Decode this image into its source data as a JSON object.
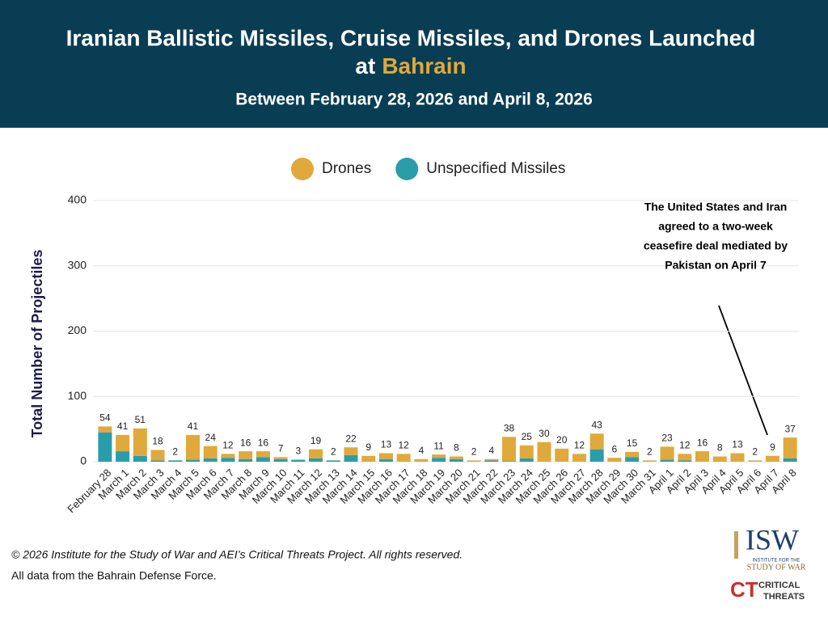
{
  "header": {
    "title_line1": "Iranian Ballistic Missiles, Cruise Missiles, and Drones Launched",
    "title_line2_prefix": "at",
    "title_highlight": "Bahrain",
    "subtitle": "Between February 28, 2026 and April 8, 2026"
  },
  "chart_data": {
    "type": "stacked_bar",
    "y_label": "Total Number of Projectiles",
    "categories": [
      "February 28",
      "March 1",
      "March 2",
      "March 3",
      "March 4",
      "March 5",
      "March 6",
      "March 7",
      "March 8",
      "March 9",
      "March 10",
      "March 11",
      "March 12",
      "March 13",
      "March 14",
      "March 15",
      "March 16",
      "March 17",
      "March 18",
      "March 19",
      "March 20",
      "March 21",
      "March 22",
      "March 23",
      "March 24",
      "March 25",
      "March 26",
      "March 27",
      "March 28",
      "March 29",
      "March 30",
      "March 31",
      "April 1",
      "April 2",
      "April 3",
      "April 4",
      "April 5",
      "April 6",
      "April 7",
      "April 8"
    ],
    "series": [
      {
        "name": "Unspecified Missiles",
        "color": "#2a9dab",
        "values": [
          45,
          16,
          9,
          2,
          2,
          3,
          5,
          6,
          4,
          7,
          4,
          3,
          5,
          2,
          10,
          0,
          4,
          0,
          0,
          6,
          4,
          0,
          2,
          1,
          5,
          0,
          0,
          0,
          19,
          0,
          7,
          0,
          3,
          2,
          0,
          0,
          0,
          0,
          0,
          5
        ]
      },
      {
        "name": "Drones",
        "color": "#e0a93b",
        "values": [
          9,
          25,
          42,
          16,
          0,
          38,
          19,
          6,
          12,
          9,
          3,
          0,
          14,
          0,
          12,
          9,
          9,
          12,
          4,
          5,
          4,
          2,
          2,
          37,
          20,
          30,
          20,
          12,
          24,
          6,
          8,
          2,
          20,
          10,
          16,
          8,
          13,
          2,
          9,
          32
        ]
      }
    ],
    "legend_order": [
      1,
      0
    ],
    "totals": [
      54,
      41,
      51,
      18,
      2,
      41,
      24,
      12,
      16,
      16,
      7,
      3,
      19,
      2,
      22,
      9,
      13,
      12,
      4,
      11,
      8,
      2,
      4,
      38,
      25,
      30,
      20,
      12,
      43,
      6,
      15,
      2,
      23,
      12,
      16,
      8,
      13,
      2,
      9,
      37
    ],
    "ylim": [
      0,
      400
    ],
    "yticks": [
      0,
      100,
      200,
      300,
      400
    ],
    "grid": true,
    "annotation": [
      "The United States and Iran",
      "agreed to a two-week",
      "ceasefire deal mediated by",
      "Pakistan on April 7"
    ]
  },
  "footer": {
    "copyright": "© 2026 Institute for the Study of War and AEI’s Critical Threats Project. All rights reserved.",
    "source": "All data from the Bahrain Defense Force."
  },
  "logos": {
    "isw": "ISW",
    "isw_sub1": "INSTITUTE FOR THE",
    "isw_sub2": "STUDY OF WAR",
    "ct": "CT",
    "ct_sub1": "CRITICAL",
    "ct_sub2": "THREATS"
  }
}
